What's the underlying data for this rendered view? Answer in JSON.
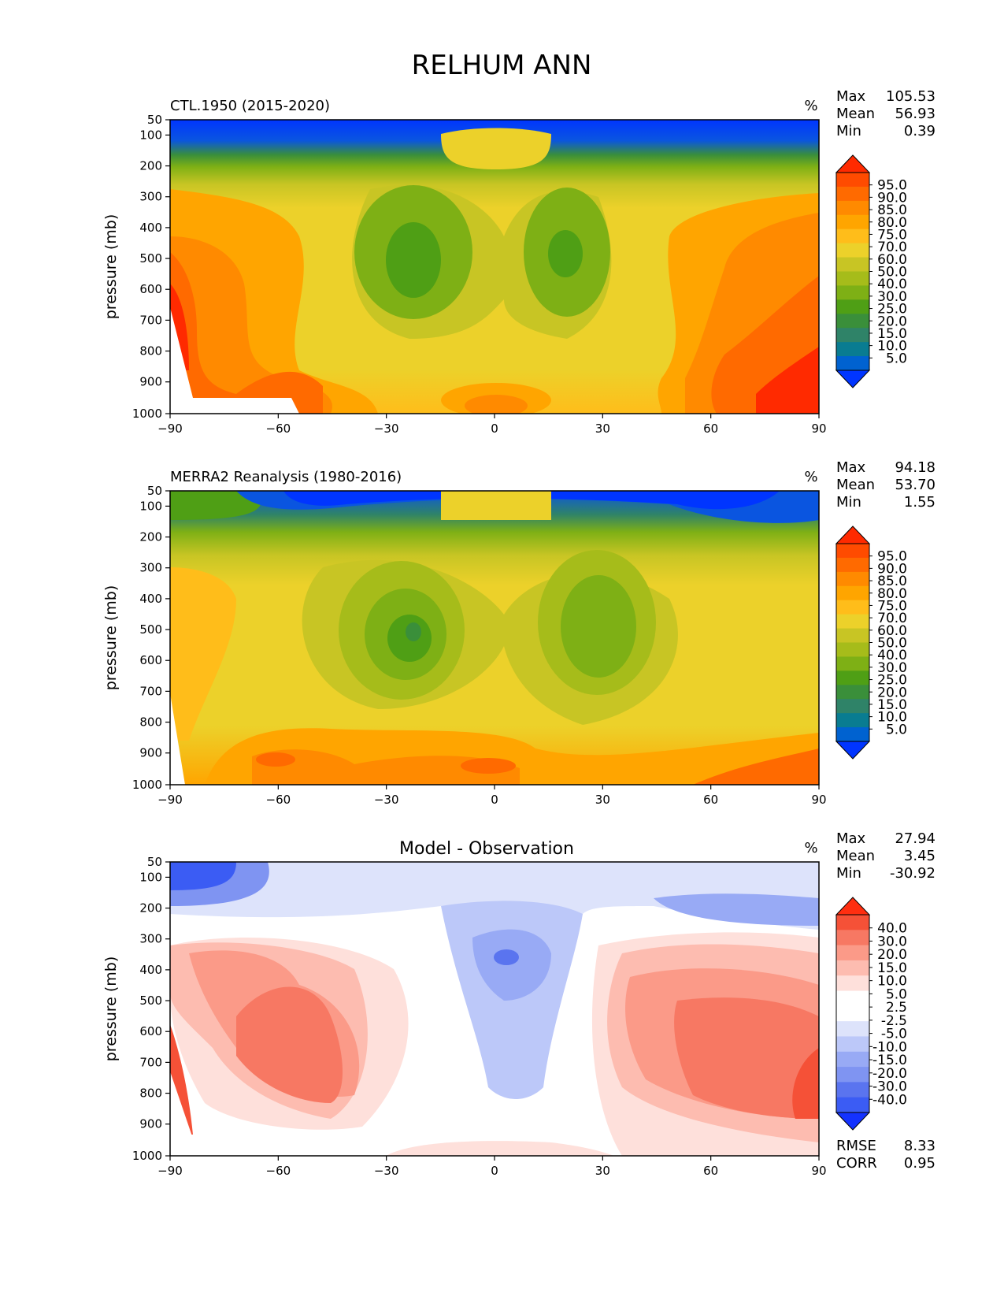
{
  "title": "RELHUM ANN",
  "panels": [
    {
      "id": "test",
      "subtitle": "CTL.1950 (2015-2020)",
      "subtitle_pos": "left",
      "units": "%",
      "stats": [
        [
          "Max",
          "105.53"
        ],
        [
          "Mean",
          "56.93"
        ],
        [
          "Min",
          "0.39"
        ]
      ],
      "colorbar": "absolute"
    },
    {
      "id": "ref",
      "subtitle": "MERRA2 Reanalysis (1980-2016)",
      "subtitle_pos": "left",
      "units": "%",
      "stats": [
        [
          "Max",
          "94.18"
        ],
        [
          "Mean",
          "53.70"
        ],
        [
          "Min",
          "1.55"
        ]
      ],
      "colorbar": "absolute"
    },
    {
      "id": "diff",
      "subtitle": "Model - Observation",
      "subtitle_pos": "center",
      "units": "%",
      "stats": [
        [
          "Max",
          "27.94"
        ],
        [
          "Mean",
          "3.45"
        ],
        [
          "Min",
          "-30.92"
        ]
      ],
      "extra_stats": [
        [
          "RMSE",
          "8.33"
        ],
        [
          "CORR",
          "0.95"
        ]
      ],
      "colorbar": "difference"
    }
  ],
  "axes": {
    "ylabel": "pressure (mb)",
    "x_ticks": [
      "−90",
      "−60",
      "−30",
      "0",
      "30",
      "60",
      "90"
    ],
    "y_ticks": [
      "50",
      "100",
      "200",
      "300",
      "400",
      "500",
      "600",
      "700",
      "800",
      "900",
      "1000"
    ]
  },
  "colorbars": {
    "absolute": {
      "labels": [
        "95.0",
        "90.0",
        "85.0",
        "80.0",
        "75.0",
        "70.0",
        "60.0",
        "50.0",
        "40.0",
        "30.0",
        "25.0",
        "20.0",
        "15.0",
        "10.0",
        "5.0"
      ],
      "colors": [
        "#ff2a00",
        "#ff4b00",
        "#ff6a00",
        "#ff8a00",
        "#ffa500",
        "#ffbd1a",
        "#ecd12a",
        "#c8c524",
        "#a6bc1a",
        "#7eb015",
        "#4f9f15",
        "#3a8f3a",
        "#2f8368",
        "#097c91",
        "#0062d0",
        "#0035ff"
      ]
    },
    "difference": {
      "labels": [
        "40.0",
        "30.0",
        "20.0",
        "15.0",
        "10.0",
        "5.0",
        "2.5",
        "-2.5",
        "-5.0",
        "-10.0",
        "-15.0",
        "-20.0",
        "-30.0",
        "-40.0"
      ],
      "colors": [
        "#ff2e10",
        "#f55137",
        "#f77863",
        "#fb9a88",
        "#fdbcb0",
        "#fee0db",
        "#ffffff",
        "#ffffff",
        "#dde3fb",
        "#bcc8f9",
        "#98aaf5",
        "#7f94f2",
        "#5a74ef",
        "#3b5cf4",
        "#1432ff"
      ]
    }
  }
}
